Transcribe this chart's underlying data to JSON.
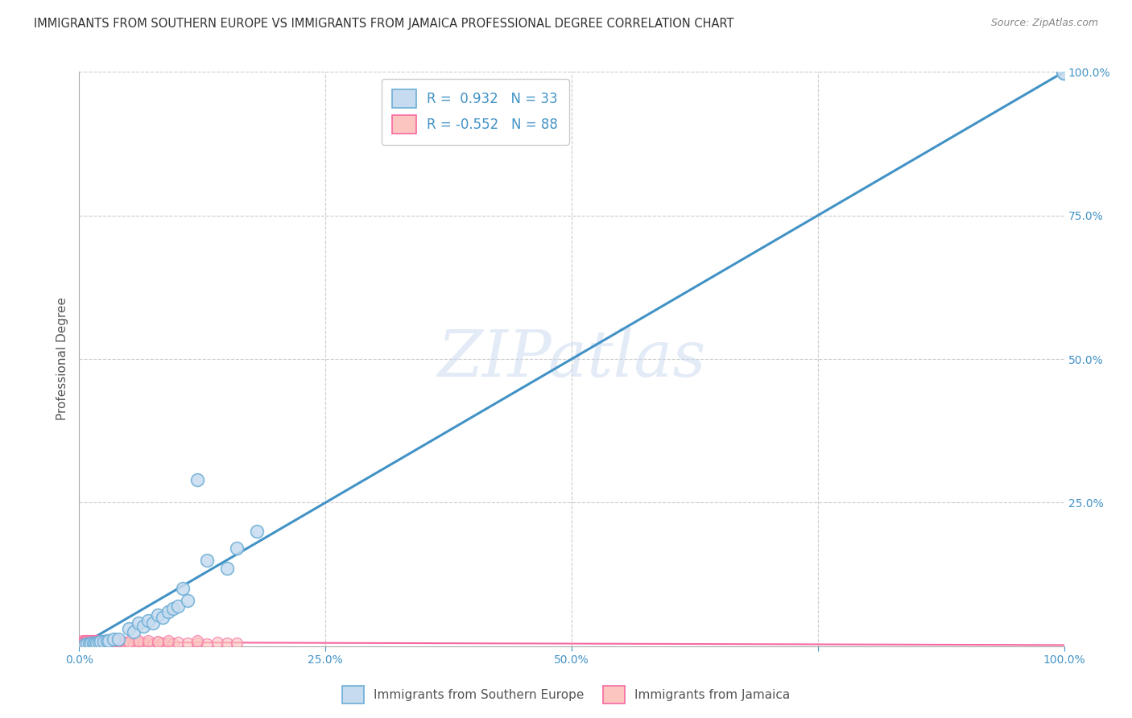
{
  "title": "IMMIGRANTS FROM SOUTHERN EUROPE VS IMMIGRANTS FROM JAMAICA PROFESSIONAL DEGREE CORRELATION CHART",
  "source": "Source: ZipAtlas.com",
  "ylabel": "Professional Degree",
  "watermark": "ZIPatlas",
  "legend_labels": [
    "Immigrants from Southern Europe",
    "Immigrants from Jamaica"
  ],
  "r_blue": 0.932,
  "n_blue": 33,
  "r_pink": -0.552,
  "n_pink": 88,
  "blue_fill": "#c6dbef",
  "blue_edge": "#6baed6",
  "pink_fill": "#fcc5c0",
  "pink_edge": "#f768a1",
  "line_blue": "#4292c6",
  "line_pink": "#f768a1",
  "blue_x": [
    0.005,
    0.008,
    0.01,
    0.012,
    0.014,
    0.016,
    0.018,
    0.02,
    0.022,
    0.025,
    0.028,
    0.03,
    0.035,
    0.04,
    0.05,
    0.055,
    0.06,
    0.065,
    0.07,
    0.075,
    0.08,
    0.085,
    0.09,
    0.095,
    0.1,
    0.105,
    0.11,
    0.12,
    0.13,
    0.15,
    0.16,
    0.18,
    1.0
  ],
  "blue_y": [
    0.003,
    0.004,
    0.004,
    0.005,
    0.005,
    0.006,
    0.006,
    0.007,
    0.008,
    0.008,
    0.009,
    0.01,
    0.012,
    0.013,
    0.03,
    0.025,
    0.04,
    0.035,
    0.045,
    0.04,
    0.055,
    0.05,
    0.06,
    0.065,
    0.07,
    0.1,
    0.08,
    0.29,
    0.15,
    0.135,
    0.17,
    0.2,
    1.0
  ],
  "pink_x": [
    0.002,
    0.003,
    0.004,
    0.005,
    0.005,
    0.006,
    0.006,
    0.007,
    0.007,
    0.008,
    0.008,
    0.009,
    0.009,
    0.01,
    0.01,
    0.011,
    0.012,
    0.012,
    0.013,
    0.014,
    0.015,
    0.015,
    0.016,
    0.017,
    0.018,
    0.019,
    0.02,
    0.021,
    0.022,
    0.023,
    0.025,
    0.026,
    0.028,
    0.03,
    0.032,
    0.034,
    0.036,
    0.038,
    0.04,
    0.042,
    0.044,
    0.046,
    0.048,
    0.05,
    0.055,
    0.06,
    0.065,
    0.07,
    0.075,
    0.08,
    0.085,
    0.09,
    0.095,
    0.1,
    0.11,
    0.12,
    0.13,
    0.14,
    0.15,
    0.16,
    0.003,
    0.004,
    0.005,
    0.006,
    0.007,
    0.008,
    0.009,
    0.01,
    0.011,
    0.012,
    0.013,
    0.014,
    0.015,
    0.016,
    0.017,
    0.018,
    0.02,
    0.022,
    0.025,
    0.03,
    0.035,
    0.04,
    0.05,
    0.06,
    0.07,
    0.08,
    0.09,
    0.12
  ],
  "pink_y": [
    0.005,
    0.004,
    0.006,
    0.005,
    0.007,
    0.004,
    0.006,
    0.005,
    0.007,
    0.004,
    0.006,
    0.005,
    0.007,
    0.004,
    0.006,
    0.005,
    0.004,
    0.007,
    0.005,
    0.006,
    0.004,
    0.007,
    0.005,
    0.006,
    0.004,
    0.007,
    0.005,
    0.006,
    0.004,
    0.007,
    0.005,
    0.006,
    0.004,
    0.007,
    0.005,
    0.006,
    0.004,
    0.007,
    0.005,
    0.006,
    0.004,
    0.007,
    0.005,
    0.006,
    0.004,
    0.007,
    0.005,
    0.006,
    0.004,
    0.007,
    0.005,
    0.006,
    0.004,
    0.007,
    0.005,
    0.006,
    0.004,
    0.007,
    0.005,
    0.006,
    0.009,
    0.008,
    0.01,
    0.009,
    0.008,
    0.01,
    0.009,
    0.008,
    0.01,
    0.009,
    0.008,
    0.01,
    0.009,
    0.008,
    0.01,
    0.009,
    0.008,
    0.01,
    0.009,
    0.008,
    0.01,
    0.009,
    0.008,
    0.01,
    0.009,
    0.008,
    0.01,
    0.009
  ],
  "xlim": [
    0.0,
    1.0
  ],
  "ylim": [
    0.0,
    1.0
  ],
  "grid_color": "#cccccc",
  "bg_color": "#ffffff",
  "title_color": "#333333",
  "axis_color": "#4292c6",
  "axis_label_color": "#555555"
}
